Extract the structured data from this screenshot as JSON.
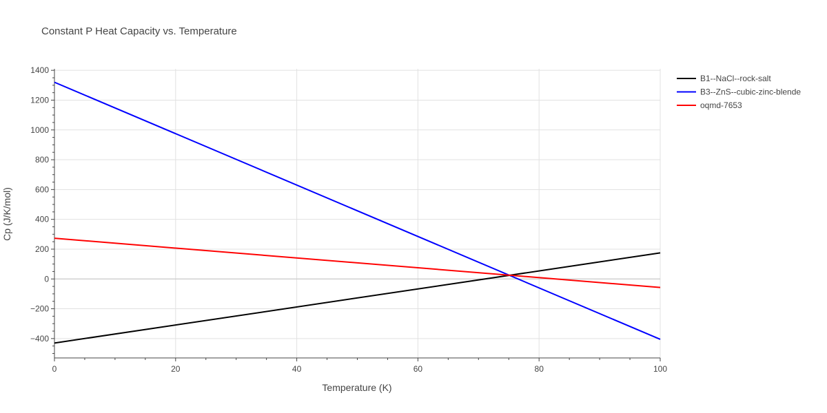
{
  "chart_data": {
    "type": "line",
    "title": "Constant P Heat Capacity vs. Temperature",
    "xlabel": "Temperature (K)",
    "ylabel": "Cp (J/K/mol)",
    "xlim": [
      0,
      100
    ],
    "ylim": [
      -530,
      1410
    ],
    "x_ticks": [
      0,
      20,
      40,
      60,
      80,
      100
    ],
    "x_tick_labels": [
      "0",
      "20",
      "40",
      "60",
      "80",
      "100"
    ],
    "y_ticks": [
      -400,
      -200,
      0,
      200,
      400,
      600,
      800,
      1000,
      1200,
      1400
    ],
    "y_tick_labels": [
      "−400",
      "−200",
      "0",
      "200",
      "400",
      "600",
      "800",
      "1000",
      "1200",
      "1400"
    ],
    "grid": true,
    "legend_position": "top-right-outside",
    "series": [
      {
        "name": "B1--NaCl--rock-salt",
        "color": "#000000",
        "x": [
          0,
          100
        ],
        "y": [
          -430,
          175
        ]
      },
      {
        "name": "B3--ZnS--cubic-zinc-blende",
        "color": "#0000ff",
        "x": [
          0,
          100
        ],
        "y": [
          1320,
          -405
        ]
      },
      {
        "name": "oqmd-7653",
        "color": "#ff0000",
        "x": [
          0,
          100
        ],
        "y": [
          273,
          -57
        ]
      }
    ]
  }
}
